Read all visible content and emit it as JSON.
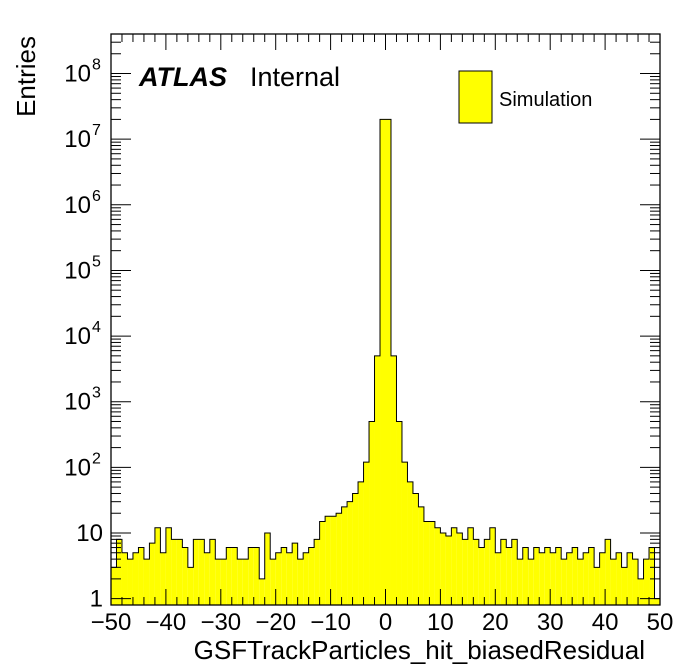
{
  "chart_data": {
    "type": "bar",
    "histogram": true,
    "xlabel": "GSFTrackParticles_hit_biasedResidual",
    "ylabel": "Entries",
    "xlim": [
      -50,
      50
    ],
    "ylim": [
      0.8,
      400000000.0
    ],
    "yscale": "log",
    "bin_width": 1,
    "bin_low_edges": [
      -50,
      -49,
      -48,
      -47,
      -46,
      -45,
      -44,
      -43,
      -42,
      -41,
      -40,
      -39,
      -38,
      -37,
      -36,
      -35,
      -34,
      -33,
      -32,
      -31,
      -30,
      -29,
      -28,
      -27,
      -26,
      -25,
      -24,
      -23,
      -22,
      -21,
      -20,
      -19,
      -18,
      -17,
      -16,
      -15,
      -14,
      -13,
      -12,
      -11,
      -10,
      -9,
      -8,
      -7,
      -6,
      -5,
      -4,
      -3,
      -2,
      -1,
      0,
      1,
      2,
      3,
      4,
      5,
      6,
      7,
      8,
      9,
      10,
      11,
      12,
      13,
      14,
      15,
      16,
      17,
      18,
      19,
      20,
      21,
      22,
      23,
      24,
      25,
      26,
      27,
      28,
      29,
      30,
      31,
      32,
      33,
      34,
      35,
      36,
      37,
      38,
      39,
      40,
      41,
      42,
      43,
      44,
      45,
      46,
      47,
      48,
      49
    ],
    "values": [
      3,
      8,
      5,
      4,
      5,
      6,
      4,
      7,
      12,
      5,
      12,
      8,
      8,
      6,
      3,
      8,
      8,
      5,
      8,
      4,
      4,
      6,
      6,
      4,
      4,
      6,
      6,
      2,
      10,
      4,
      5,
      6,
      5,
      7,
      4,
      5,
      6,
      8,
      15,
      18,
      18,
      20,
      25,
      30,
      40,
      60,
      120,
      500,
      5000,
      20000000,
      20000000,
      5000,
      500,
      120,
      60,
      40,
      25,
      15,
      15,
      12,
      10,
      9,
      12,
      10,
      8,
      12,
      8,
      6,
      8,
      12,
      5,
      8,
      6,
      8,
      4,
      6,
      4,
      6,
      5,
      6,
      5,
      6,
      4,
      5,
      6,
      4,
      5,
      6,
      3,
      5,
      8,
      4,
      5,
      3,
      5,
      4,
      2,
      4,
      6,
      1
    ],
    "bar_color": "#ffff00",
    "edge_color": "#000000",
    "legend": [
      {
        "label": "Simulation",
        "color": "#ffff00"
      }
    ],
    "legend_placement": "top-right",
    "annotations": {
      "atlas": "ATLAS",
      "label": "Internal"
    },
    "x_ticks": [
      "−50",
      "−40",
      "−30",
      "−20",
      "−10",
      "0",
      "10",
      "20",
      "30",
      "40",
      "50"
    ],
    "y_ticks": [
      "1",
      "10",
      "10",
      "10",
      "10",
      "10",
      "10",
      "10",
      "10"
    ],
    "y_tick_exponents": [
      "",
      "",
      "2",
      "3",
      "4",
      "5",
      "6",
      "7",
      "8"
    ],
    "grid": false
  }
}
